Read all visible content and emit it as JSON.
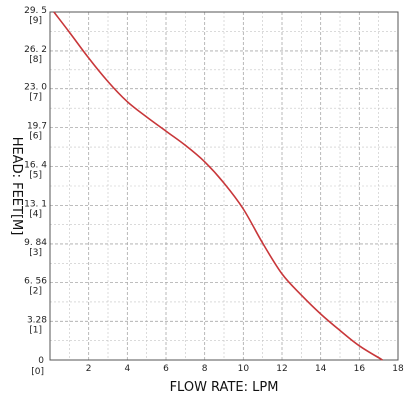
{
  "chart_data": {
    "type": "line",
    "xlabel": "FLOW RATE: LPM",
    "ylabel": "HEAD: FEET[M]",
    "xlim": [
      0,
      18
    ],
    "ylim": [
      0,
      29.5
    ],
    "x_ticks": [
      {
        "value": 2,
        "label": "2"
      },
      {
        "value": 4,
        "label": "4"
      },
      {
        "value": 6,
        "label": "6"
      },
      {
        "value": 8,
        "label": "8"
      },
      {
        "value": 10,
        "label": "10"
      },
      {
        "value": 12,
        "label": "12"
      },
      {
        "value": 14,
        "label": "14"
      },
      {
        "value": 16,
        "label": "16"
      },
      {
        "value": 18,
        "label": "18"
      }
    ],
    "x_origin_labels": [
      "0",
      "[0]"
    ],
    "y_ticks": [
      {
        "value": 0,
        "feet": "0",
        "meters": ""
      },
      {
        "value": 3.28,
        "feet": "3.28",
        "meters": "[1]"
      },
      {
        "value": 6.56,
        "feet": "6. 56",
        "meters": "[2]"
      },
      {
        "value": 9.84,
        "feet": "9. 84",
        "meters": "[3]"
      },
      {
        "value": 13.1,
        "feet": "13. 1",
        "meters": "[4]"
      },
      {
        "value": 16.4,
        "feet": "16. 4",
        "meters": "[5]"
      },
      {
        "value": 19.7,
        "feet": "19.7",
        "meters": "[6]"
      },
      {
        "value": 23.0,
        "feet": "23. 0",
        "meters": "[7]"
      },
      {
        "value": 26.2,
        "feet": "26. 2",
        "meters": "[8]"
      },
      {
        "value": 29.5,
        "feet": "29. 5",
        "meters": "[9]"
      }
    ],
    "grid": true,
    "series": [
      {
        "color": "#c8373a",
        "x": [
          0.2,
          1,
          2,
          3,
          4,
          5,
          6,
          7,
          8,
          9,
          10,
          11,
          12,
          13,
          14,
          15,
          16,
          17.2
        ],
        "y": [
          29.5,
          27.8,
          25.6,
          23.6,
          21.9,
          20.6,
          19.4,
          18.2,
          16.8,
          15.0,
          12.8,
          9.9,
          7.3,
          5.5,
          3.9,
          2.5,
          1.2,
          0.0
        ]
      }
    ]
  }
}
